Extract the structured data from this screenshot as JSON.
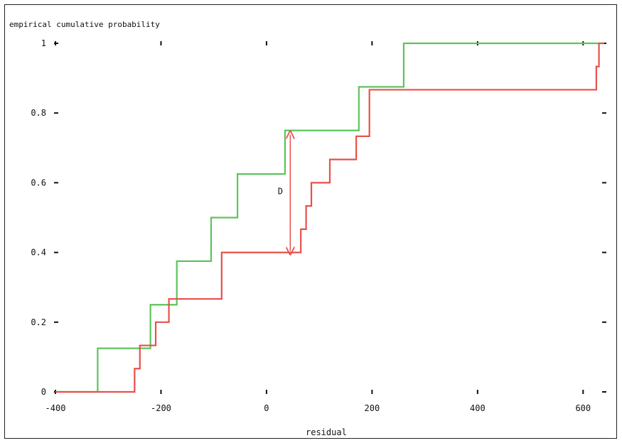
{
  "chart_data": {
    "type": "line",
    "title": "",
    "xlabel": "residual",
    "ylabel": "empirical cumulative probability",
    "xlim": [
      -400,
      640
    ],
    "ylim": [
      0,
      1
    ],
    "x_ticks": [
      -400,
      -200,
      0,
      200,
      400,
      600
    ],
    "x_tick_labels": [
      "-400",
      "-200",
      "0",
      "200",
      "400",
      "600"
    ],
    "y_ticks": [
      0,
      0.2,
      0.4,
      0.6,
      0.8,
      1
    ],
    "y_tick_labels": [
      "0",
      "0.2",
      "0.4",
      "0.6",
      "0.8",
      "1"
    ],
    "grid": false,
    "series": [
      {
        "color": "#5cc45c",
        "step": "post",
        "x": [
          -400,
          -320,
          -220,
          -170,
          -105,
          -55,
          35,
          175,
          260,
          640
        ],
        "y": [
          0,
          0.125,
          0.25,
          0.375,
          0.5,
          0.625,
          0.75,
          0.875,
          1.0,
          1.0
        ]
      },
      {
        "color": "#e8504a",
        "step": "post",
        "x": [
          -400,
          -250,
          -240,
          -230,
          -210,
          -200,
          -185,
          -85,
          65,
          75,
          85,
          100,
          120,
          170,
          195,
          625,
          630,
          640
        ],
        "y": [
          0,
          0.0667,
          0.1333,
          0.1333,
          0.2,
          0.2,
          0.2667,
          0.4,
          0.4667,
          0.5333,
          0.6,
          0.6,
          0.6667,
          0.7333,
          0.8667,
          0.9333,
          1.0,
          1.0
        ]
      }
    ],
    "annotations": [
      {
        "text": "D",
        "x": 45,
        "y_from": 0.4,
        "y_to": 0.75,
        "color": "#e8504a"
      }
    ]
  }
}
